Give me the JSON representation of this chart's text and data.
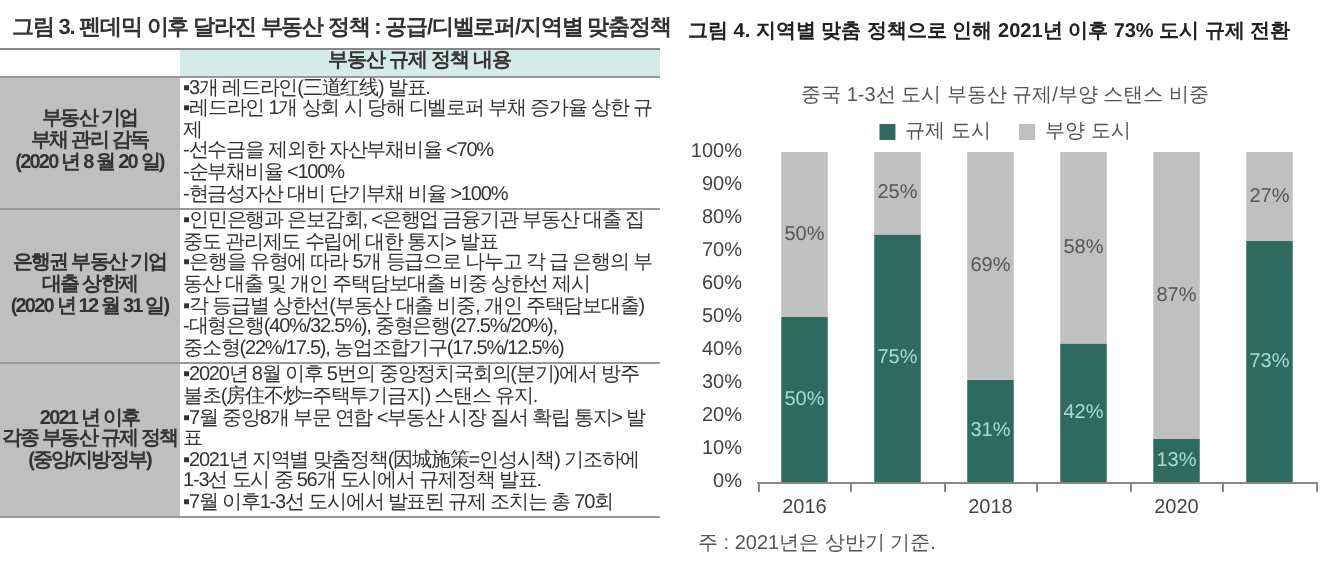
{
  "chart_data": [
    {
      "type": "other",
      "title": "그림 3. 펜데믹 이후 달라진 부동산 정책 : 공급/디벨로퍼/지역별 맞춤정책",
      "annotations": [
        "부동산 규제 정책 내용",
        "부동산 기업\n부채 관리 감독\n(2020 년 8 월 20 일)",
        "▪3개 레드라인(三道红线) 발표.\n▪레드라인 1개 상회 시 당해 디벨로퍼 부채 증가율 상한 규제\n-선수금을 제외한 자산부채비율 <70%\n-순부채비율 <100%\n-현금성자산 대비 단기부채 비율 >100%",
        "은행권 부동산 기업\n대출 상한제\n(2020 년 12 월 31 일)",
        "▪인민은행과 은보감회, <은행업 금융기관 부동산 대출 집중도 관리제도 수립에 대한 통지> 발표\n▪은행을 유형에 따라 5개 등급으로 나누고 각 급 은행의 부동산 대출 및 개인 주택담보대출 비중 상한선 제시\n▪각 등급별 상한선(부동산 대출 비중, 개인 주택담보대출)\n-대형은행(40%/32.5%), 중형은행(27.5%/20%),\n중소형(22%/17.5), 농업조합기구(17.5%/12.5%)",
        "2021 년 이후\n각종 부동산 규제 정책\n(중앙/지방정부)",
        "▪2020년 8월 이후 5번의 중앙정치국회의(분기)에서 방주불초(房住不炒=주택투기금지) 스탠스 유지.\n▪7월 중앙8개 부문 연합 <부동산 시장 질서 확립 통지> 발표\n▪2021년 지역별 맞춤정책(因城施策=인성시책) 기조하에 1-3선 도시 중 56개 도시에서 규제정책 발표.\n▪7월 이후1-3선 도시에서 발표된 규제 조치는 총 70회"
      ]
    },
    {
      "type": "bar",
      "title": "그림 4. 지역별 맞춤 정책으로 인해 2021년 이후 73% 도시 규제 전환",
      "subtitle": "중국 1-3선 도시 부동산 규제/부양 스탠스 비중",
      "categories": [
        "2016",
        null,
        "2018",
        null,
        "2020",
        null
      ],
      "stacked": true,
      "legend": "top",
      "grid": false,
      "ylim": [
        0,
        100
      ],
      "yticks": [
        {
          "value": 0,
          "label": "0%"
        },
        {
          "value": 10,
          "label": "10%"
        },
        {
          "value": 20,
          "label": "20%"
        },
        {
          "value": 30,
          "label": "30%"
        },
        {
          "value": 40,
          "label": "40%"
        },
        {
          "value": 50,
          "label": "50%"
        },
        {
          "value": 60,
          "label": "60%"
        },
        {
          "value": 70,
          "label": "70%"
        },
        {
          "value": 80,
          "label": "80%"
        },
        {
          "value": 90,
          "label": "90%"
        },
        {
          "value": 100,
          "label": "100%"
        }
      ],
      "series": [
        {
          "name": "규제 도시",
          "color": "#2e6b5e",
          "values": [
            50,
            75,
            31,
            42,
            13,
            73
          ],
          "value_labels": [
            "50%",
            "75%",
            "31%",
            "42%",
            "13%",
            "73%"
          ]
        },
        {
          "name": "부양 도시",
          "color": "#c0c0c0",
          "values": [
            50,
            25,
            69,
            58,
            87,
            27
          ],
          "value_labels": [
            "50%",
            "25%",
            "69%",
            "58%",
            "87%",
            "27%"
          ]
        }
      ],
      "annotations": [
        "주 : 2021년은 상반기 기준."
      ]
    }
  ]
}
